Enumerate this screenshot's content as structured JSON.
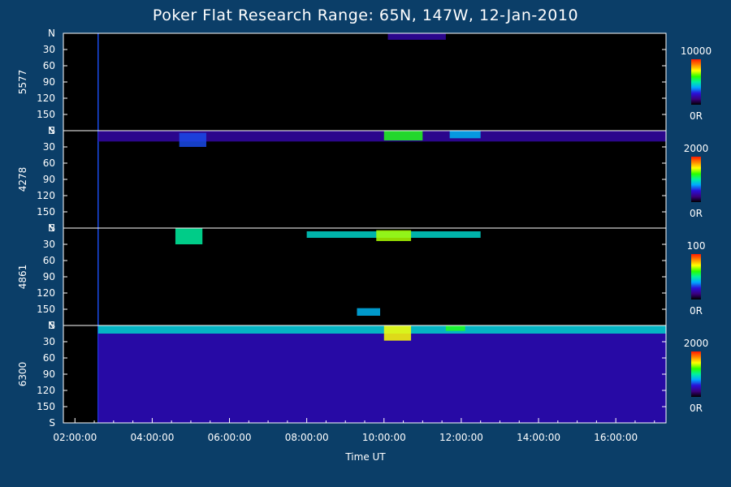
{
  "title": "Poker Flat Research Range: 65N, 147W, 12-Jan-2010",
  "xlabel": "Time UT",
  "chart_data": {
    "type": "heatmap",
    "title": "Poker Flat Research Range: 65N, 147W, 12-Jan-2010",
    "xlabel": "Time UT",
    "x_ticks": [
      "02:00:00",
      "04:00:00",
      "06:00:00",
      "08:00:00",
      "10:00:00",
      "12:00:00",
      "14:00:00",
      "16:00:00"
    ],
    "x_range_hours": [
      1.7,
      17.3
    ],
    "y_ticks": [
      "N",
      "30",
      "60",
      "90",
      "120",
      "150",
      "S"
    ],
    "y_range": [
      0,
      180
    ],
    "panels": [
      {
        "ylabel": "5577",
        "colorbar_max": "10000",
        "colorbar_min": "0R",
        "data_start_hour": 2.6,
        "features": [
          {
            "t0": 10.1,
            "t1": 11.6,
            "y0": 0,
            "y1": 12,
            "intensity": 0.18
          }
        ]
      },
      {
        "ylabel": "4278",
        "colorbar_max": "2000",
        "colorbar_min": "0R",
        "data_start_hour": 2.6,
        "features": [
          {
            "t0": 2.6,
            "t1": 17.3,
            "y0": 0,
            "y1": 20,
            "intensity": 0.18
          },
          {
            "t0": 10.0,
            "t1": 11.0,
            "y0": 0,
            "y1": 18,
            "intensity": 0.6
          },
          {
            "t0": 11.7,
            "t1": 12.5,
            "y0": 0,
            "y1": 14,
            "intensity": 0.4
          },
          {
            "t0": 4.7,
            "t1": 5.4,
            "y0": 4,
            "y1": 30,
            "intensity": 0.3
          }
        ]
      },
      {
        "ylabel": "4861",
        "colorbar_max": "100",
        "colorbar_min": "0R",
        "data_start_hour": 2.6,
        "features": [
          {
            "t0": 4.6,
            "t1": 5.3,
            "y0": 0,
            "y1": 30,
            "intensity": 0.5
          },
          {
            "t0": 8.0,
            "t1": 12.5,
            "y0": 6,
            "y1": 18,
            "intensity": 0.45
          },
          {
            "t0": 9.8,
            "t1": 10.7,
            "y0": 4,
            "y1": 24,
            "intensity": 0.7
          },
          {
            "t0": 9.3,
            "t1": 9.9,
            "y0": 148,
            "y1": 162,
            "intensity": 0.4
          }
        ]
      },
      {
        "ylabel": "6300",
        "colorbar_max": "2000",
        "colorbar_min": "0R",
        "data_start_hour": 2.6,
        "features": [
          {
            "t0": 2.6,
            "t1": 17.3,
            "y0": 0,
            "y1": 180,
            "intensity": 0.22
          },
          {
            "t0": 2.6,
            "t1": 17.3,
            "y0": 0,
            "y1": 15,
            "intensity": 0.45
          },
          {
            "t0": 10.0,
            "t1": 10.7,
            "y0": 0,
            "y1": 28,
            "intensity": 0.75
          },
          {
            "t0": 11.6,
            "t1": 12.1,
            "y0": 0,
            "y1": 10,
            "intensity": 0.6
          }
        ]
      }
    ]
  }
}
